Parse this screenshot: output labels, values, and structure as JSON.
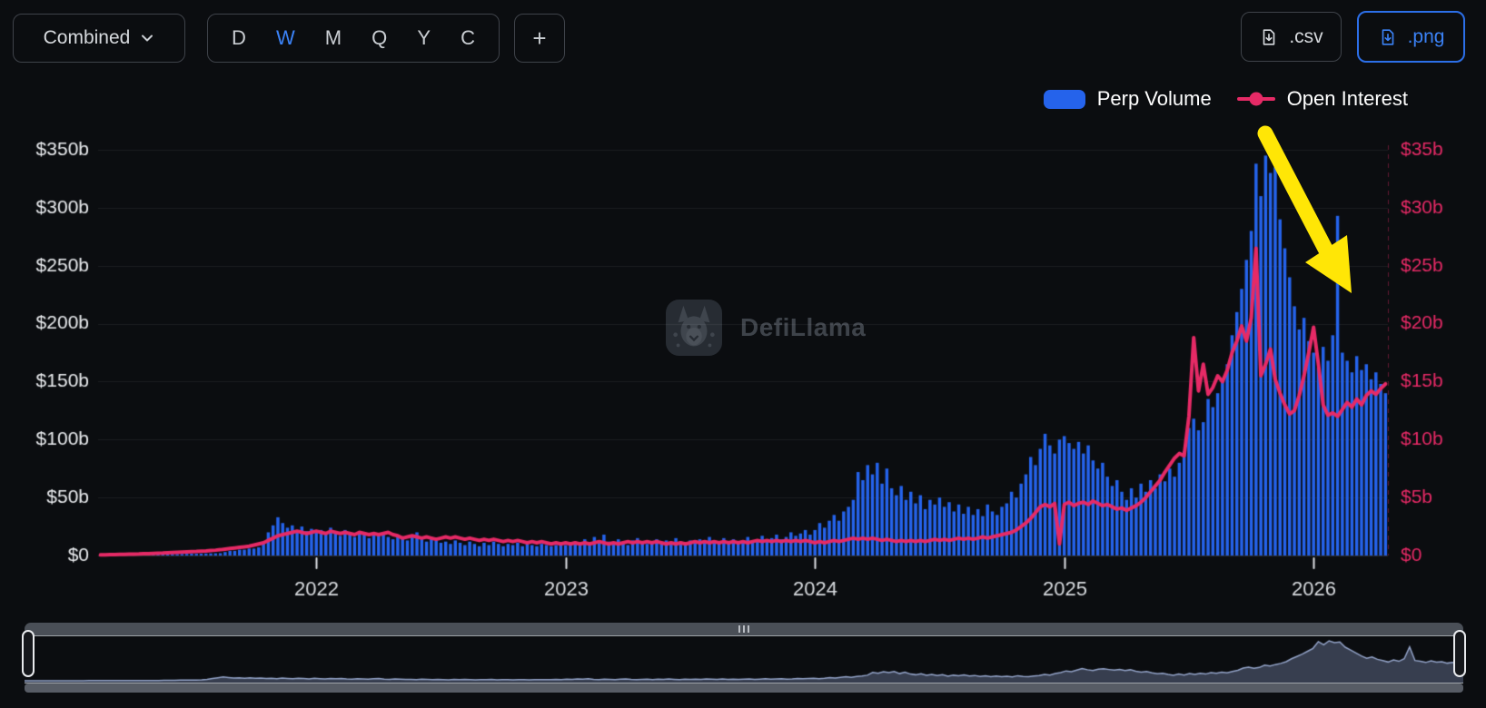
{
  "toolbar": {
    "grouping_selector": {
      "label": "Combined"
    },
    "intervals": {
      "options": [
        "D",
        "W",
        "M",
        "Q",
        "Y",
        "C"
      ],
      "active": "W"
    },
    "add_button_label": "+",
    "export_csv_label": ".csv",
    "export_png_label": ".png"
  },
  "legend": {
    "items": [
      {
        "label": "Perp Volume",
        "color": "#2563eb",
        "marker": "bar"
      },
      {
        "label": "Open Interest",
        "color": "#e62a66",
        "marker": "line-dot"
      }
    ]
  },
  "watermark": {
    "label": "DefiLlama"
  },
  "colors": {
    "background": "#0b0d10",
    "bar_blue": "#2563eb",
    "line_pink": "#e62a66",
    "accent_blue": "#3b82f6",
    "annotation_yellow": "#ffe606",
    "axis_text_left": "#e9ebee",
    "axis_text_bottom": "#d8dbdf"
  },
  "annotation": {
    "type": "arrow",
    "color": "#ffe606",
    "direction": "down-right"
  },
  "chart_data": {
    "type": "bar",
    "subtype": "combo-bar-line",
    "unit": "USD billions",
    "x_start": "2021",
    "x_end": "2026",
    "x_ticks": [
      {
        "label": "2022",
        "index": 45
      },
      {
        "label": "2023",
        "index": 97
      },
      {
        "label": "2024",
        "index": 149
      },
      {
        "label": "2025",
        "index": 201
      },
      {
        "label": "2026",
        "index": 253
      }
    ],
    "left_axis": {
      "ticks": [
        "$0",
        "$50b",
        "$100b",
        "$150b",
        "$200b",
        "$250b",
        "$300b",
        "$350b"
      ],
      "min": 0,
      "max": 350
    },
    "right_axis": {
      "ticks": [
        "$0",
        "$5b",
        "$10b",
        "$15b",
        "$20b",
        "$25b",
        "$30b",
        "$35b"
      ],
      "min": 0,
      "max": 35
    },
    "grid": true,
    "legend_position": "top-right",
    "series": [
      {
        "name": "Perp Volume",
        "type": "bar",
        "axis": "left",
        "color": "#2563eb",
        "values": [
          0.3,
          0.3,
          0.4,
          0.4,
          0.5,
          0.5,
          0.6,
          0.6,
          0.7,
          0.8,
          0.8,
          0.9,
          1,
          1,
          1.1,
          1.2,
          1.2,
          1.3,
          1.4,
          1.5,
          1.5,
          1.6,
          1.7,
          1.8,
          1.9,
          2,
          3,
          4,
          4,
          5,
          5,
          6,
          6,
          7,
          12,
          20,
          26,
          33,
          28,
          24,
          26,
          22,
          25,
          21,
          23,
          20,
          22,
          18,
          24,
          20,
          17,
          22,
          19,
          16,
          21,
          18,
          15,
          19,
          17,
          20,
          16,
          14,
          18,
          15,
          13,
          17,
          20,
          14,
          12,
          16,
          13,
          11,
          12,
          10,
          13,
          11,
          9,
          12,
          10,
          8,
          11,
          9,
          12,
          10,
          8,
          10,
          9,
          11,
          8,
          10,
          9,
          8,
          10,
          9,
          8,
          9,
          10,
          9,
          10,
          12,
          9,
          14,
          11,
          16,
          13,
          18,
          12,
          10,
          14,
          11,
          9,
          13,
          15,
          11,
          10,
          12,
          14,
          10,
          13,
          11,
          15,
          12,
          10,
          13,
          11,
          14,
          12,
          16,
          13,
          11,
          15,
          12,
          14,
          11,
          13,
          16,
          12,
          14,
          17,
          13,
          15,
          18,
          14,
          16,
          20,
          17,
          19,
          22,
          18,
          22,
          28,
          24,
          30,
          35,
          30,
          38,
          42,
          48,
          72,
          65,
          78,
          70,
          80,
          62,
          75,
          58,
          52,
          60,
          48,
          55,
          45,
          52,
          40,
          48,
          44,
          50,
          42,
          46,
          38,
          44,
          36,
          42,
          35,
          40,
          34,
          44,
          38,
          35,
          42,
          45,
          55,
          50,
          62,
          70,
          85,
          78,
          92,
          105,
          95,
          88,
          100,
          103,
          97,
          92,
          98,
          88,
          95,
          82,
          75,
          80,
          68,
          60,
          65,
          55,
          48,
          58,
          50,
          62,
          55,
          65,
          58,
          70,
          64,
          75,
          68,
          80,
          90,
          110,
          118,
          108,
          115,
          135,
          128,
          140,
          150,
          165,
          190,
          210,
          230,
          255,
          280,
          338,
          310,
          345,
          330,
          335,
          290,
          265,
          240,
          215,
          195,
          205,
          185,
          175,
          162,
          180,
          168,
          190,
          293,
          175,
          168,
          158,
          172,
          160,
          165,
          152,
          158,
          148,
          140
        ]
      },
      {
        "name": "Open Interest",
        "type": "line",
        "axis": "right",
        "color": "#e62a66",
        "values": [
          0.05,
          0.06,
          0.07,
          0.08,
          0.09,
          0.1,
          0.11,
          0.12,
          0.13,
          0.15,
          0.16,
          0.18,
          0.2,
          0.21,
          0.23,
          0.25,
          0.27,
          0.29,
          0.31,
          0.33,
          0.35,
          0.38,
          0.4,
          0.43,
          0.46,
          0.5,
          0.55,
          0.6,
          0.65,
          0.7,
          0.75,
          0.8,
          0.9,
          1,
          1.1,
          1.3,
          1.5,
          1.7,
          1.8,
          1.9,
          2,
          2.1,
          2,
          1.9,
          2,
          2.1,
          2,
          1.9,
          2.1,
          2,
          1.9,
          2,
          1.9,
          1.8,
          2,
          1.9,
          1.8,
          1.9,
          1.8,
          1.9,
          2,
          1.8,
          1.7,
          1.5,
          1.6,
          1.7,
          1.6,
          1.5,
          1.6,
          1.5,
          1.4,
          1.5,
          1.6,
          1.5,
          1.6,
          1.5,
          1.4,
          1.5,
          1.4,
          1.3,
          1.4,
          1.3,
          1.4,
          1.3,
          1.2,
          1.3,
          1.2,
          1.3,
          1.2,
          1.1,
          1.2,
          1.1,
          1.2,
          1.1,
          1,
          1.1,
          1,
          1.1,
          1,
          1.1,
          1,
          1.1,
          1,
          1.1,
          1.2,
          1.1,
          1,
          1.1,
          1,
          1.1,
          1.2,
          1.1,
          1.2,
          1.1,
          1.2,
          1.1,
          1.2,
          1.1,
          1,
          1.1,
          1,
          1.1,
          1,
          1.1,
          1.2,
          1.1,
          1.2,
          1.1,
          1.2,
          1.1,
          1.2,
          1.1,
          1.2,
          1.1,
          1.2,
          1.1,
          1.2,
          1.3,
          1.2,
          1.3,
          1.2,
          1.3,
          1.2,
          1.3,
          1.2,
          1.3,
          1.2,
          1.3,
          1.2,
          1.1,
          1.2,
          1.1,
          1.2,
          1.3,
          1.2,
          1.3,
          1.4,
          1.5,
          1.4,
          1.5,
          1.4,
          1.5,
          1.4,
          1.3,
          1.4,
          1.3,
          1.2,
          1.3,
          1.2,
          1.3,
          1.2,
          1.3,
          1.2,
          1.3,
          1.4,
          1.3,
          1.4,
          1.3,
          1.4,
          1.5,
          1.4,
          1.5,
          1.4,
          1.5,
          1.6,
          1.5,
          1.6,
          1.7,
          1.8,
          1.9,
          2,
          2.2,
          2.5,
          2.8,
          3.2,
          3.7,
          4.2,
          4.4,
          4.2,
          4.5,
          1,
          4.4,
          4.6,
          4.3,
          4.5,
          4.6,
          4.4,
          4.7,
          4.5,
          4.3,
          4.4,
          4.2,
          4,
          4.1,
          3.9,
          4.1,
          4.3,
          4.6,
          5,
          5.5,
          6,
          6.5,
          7.2,
          7.8,
          8.4,
          8.8,
          8.6,
          12,
          18.8,
          14.2,
          16.5,
          13.9,
          14.5,
          15.5,
          15,
          16,
          17.5,
          18.5,
          19.8,
          18.5,
          20.5,
          26.5,
          15.5,
          16.5,
          17.8,
          15.2,
          14,
          13,
          12.2,
          12.5,
          13.8,
          15.5,
          17.5,
          19.7,
          16.5,
          13,
          12.1,
          12.3,
          12,
          12.6,
          13.2,
          12.8,
          13.5,
          13,
          13.8,
          14.2,
          13.9,
          14.4,
          14.8
        ]
      }
    ]
  },
  "navigator": {
    "present": true,
    "range_selected": "full",
    "mirrors_series": "Perp Volume"
  }
}
